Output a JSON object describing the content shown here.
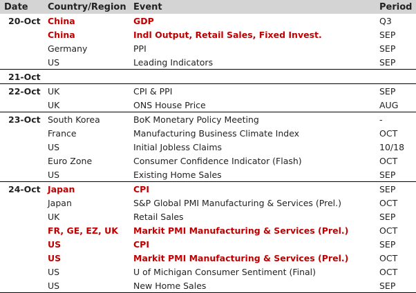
{
  "header": {
    "date": "Date",
    "country": "Country/Region",
    "event": "Event",
    "period": "Period"
  },
  "highlight_color": "#c00000",
  "groups": [
    {
      "date": "20-Oct",
      "rows": [
        {
          "country": "China",
          "event": "GDP",
          "period": "Q3",
          "highlight": true
        },
        {
          "country": "China",
          "event": "Indl Output, Retail Sales, Fixed Invest.",
          "period": "SEP",
          "highlight": true
        },
        {
          "country": "Germany",
          "event": "PPI",
          "period": "SEP",
          "highlight": false
        },
        {
          "country": "US",
          "event": "Leading Indicators",
          "period": "SEP",
          "highlight": false
        }
      ]
    },
    {
      "date": "21-Oct",
      "rows": [
        {
          "country": "",
          "event": "",
          "period": "",
          "highlight": false
        }
      ]
    },
    {
      "date": "22-Oct",
      "rows": [
        {
          "country": "UK",
          "event": "CPI & PPI",
          "period": "SEP",
          "highlight": false
        },
        {
          "country": "UK",
          "event": "ONS House Price",
          "period": "AUG",
          "highlight": false
        }
      ]
    },
    {
      "date": "23-Oct",
      "rows": [
        {
          "country": "South Korea",
          "event": "BoK Monetary Policy Meeting",
          "period": "-",
          "highlight": false
        },
        {
          "country": "France",
          "event": "Manufacturing Business Climate Index",
          "period": "OCT",
          "highlight": false
        },
        {
          "country": "US",
          "event": "Initial Jobless Claims",
          "period": "10/18",
          "highlight": false
        },
        {
          "country": "Euro Zone",
          "event": "Consumer Confidence Indicator (Flash)",
          "period": "OCT",
          "highlight": false
        },
        {
          "country": "US",
          "event": "Existing Home Sales",
          "period": "SEP",
          "highlight": false
        }
      ]
    },
    {
      "date": "24-Oct",
      "rows": [
        {
          "country": "Japan",
          "event": "CPI",
          "period": "SEP",
          "highlight": true
        },
        {
          "country": "Japan",
          "event": "S&P Global PMI Manufacturing & Services (Prel.)",
          "period": "OCT",
          "highlight": false
        },
        {
          "country": "UK",
          "event": "Retail Sales",
          "period": "SEP",
          "highlight": false
        },
        {
          "country": "FR, GE, EZ, UK",
          "event": "Markit PMI Manufacturing & Services (Prel.)",
          "period": "OCT",
          "highlight": true
        },
        {
          "country": "US",
          "event": "CPI",
          "period": "SEP",
          "highlight": true
        },
        {
          "country": "US",
          "event": "Markit PMI Manufacturing & Services (Prel.)",
          "period": "OCT",
          "highlight": true
        },
        {
          "country": "US",
          "event": "U of Michigan Consumer Sentiment (Final)",
          "period": "OCT",
          "highlight": false
        },
        {
          "country": "US",
          "event": "New Home Sales",
          "period": "SEP",
          "highlight": false
        }
      ]
    }
  ]
}
